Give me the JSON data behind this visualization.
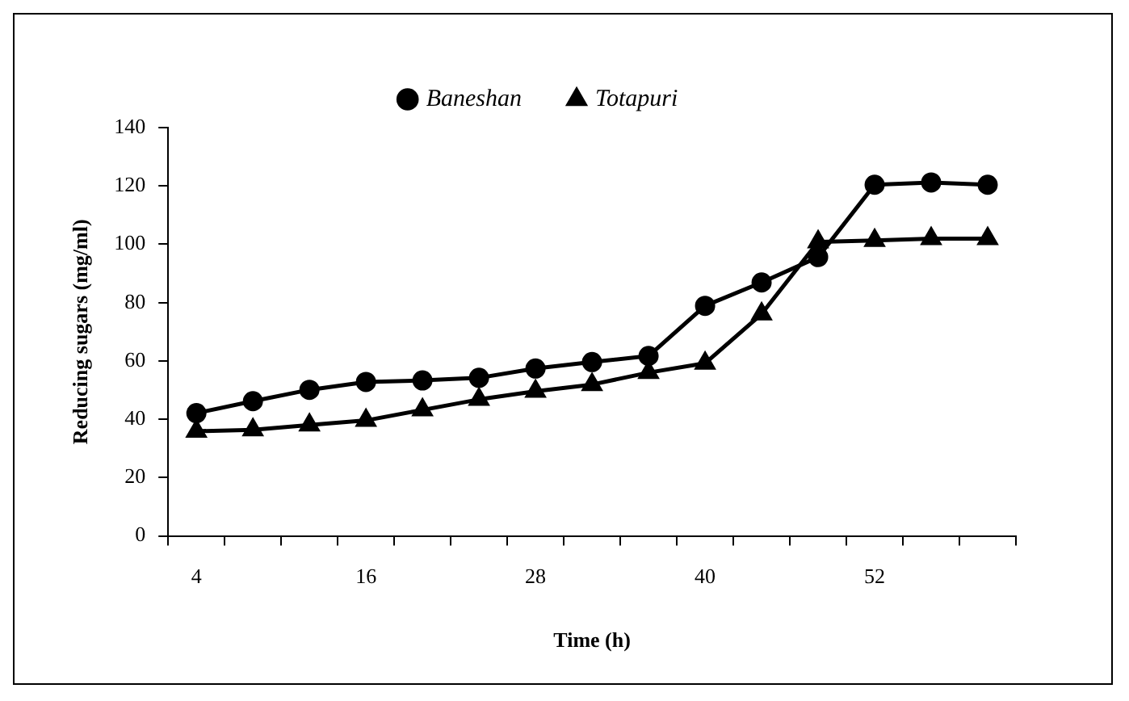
{
  "chart_data": {
    "type": "line",
    "xlabel": "Time (h)",
    "ylabel": "Reducing sugars (mg/ml)",
    "categories": [
      "4",
      null,
      null,
      "16",
      null,
      null,
      "28",
      null,
      null,
      "40",
      null,
      null,
      "52",
      null,
      null
    ],
    "series": [
      {
        "name": "Baneshan",
        "color": "#000000",
        "marker": "circle",
        "values": [
          42.1,
          46.2,
          50.1,
          52.8,
          53.3,
          54.2,
          57.4,
          59.6,
          61.7,
          78.9,
          86.9,
          95.6,
          120.4,
          121.2,
          120.4
        ]
      },
      {
        "name": "Totapuri",
        "color": "#000000",
        "marker": "triangle",
        "values": [
          35.9,
          36.4,
          38.0,
          39.6,
          43.2,
          46.8,
          49.6,
          51.9,
          56.0,
          59.2,
          76.1,
          100.8,
          101.3,
          101.9,
          101.9
        ]
      }
    ],
    "ylim": [
      0,
      140
    ],
    "yticks": [
      0,
      20,
      40,
      60,
      80,
      100,
      120,
      140
    ],
    "grid": false,
    "legend": "top",
    "line_style": "solid"
  }
}
